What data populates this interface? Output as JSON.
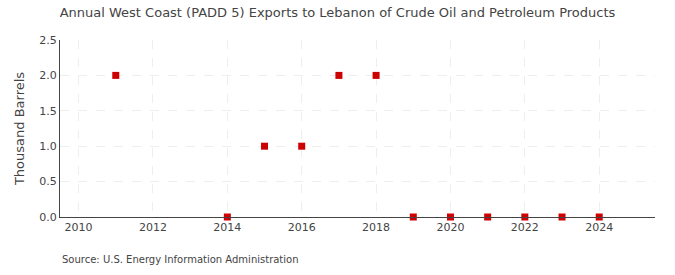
{
  "chart_data": {
    "type": "scatter",
    "title": "Annual West Coast (PADD 5) Exports to Lebanon of Crude Oil and Petroleum Products",
    "ylabel": "Thousand Barrels",
    "annotations": [
      "Source: U.S. Energy Information Administration"
    ],
    "x": [
      2011,
      2014,
      2015,
      2016,
      2017,
      2018,
      2019,
      2020,
      2021,
      2022,
      2023,
      2024
    ],
    "values": [
      2.0,
      0.0,
      1.0,
      1.0,
      2.0,
      2.0,
      0.0,
      0.0,
      0.0,
      0.0,
      0.0,
      0.0
    ],
    "color": "#cc0000",
    "marker": "square",
    "xlim": [
      2009.5,
      2025.5
    ],
    "ylim": [
      0.0,
      2.5
    ],
    "xticks": [
      2010,
      2012,
      2014,
      2016,
      2018,
      2020,
      2022,
      2024
    ],
    "yticks": [
      {
        "value": 0.0,
        "label": "0.0"
      },
      0.5,
      {
        "value": 1.0,
        "label": "1.0"
      },
      1.5,
      {
        "value": 2.0,
        "label": "2.0"
      },
      2.5
    ],
    "grid": true
  }
}
